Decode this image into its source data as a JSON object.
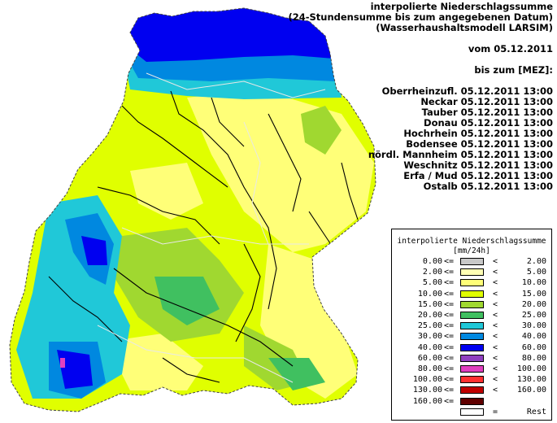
{
  "header": {
    "title_lines": [
      "interpolierte Niederschlagssumme",
      "(24-Stundensumme bis zum angegebenen Datum)",
      "(Wasserhaushaltsmodell LARSIM)"
    ],
    "date_line": "vom 05.12.2011",
    "until_line": "bis zum [MEZ]:"
  },
  "stations": [
    "Oberrheinzufl. 05.12.2011 13:00",
    "Neckar 05.12.2011 13:00",
    "Tauber 05.12.2011 13:00",
    "Donau 05.12.2011 13:00",
    "Hochrhein 05.12.2011 13:00",
    "Bodensee 05.12.2011 13:00",
    "nördl. Mannheim 05.12.2011 13:00",
    "Weschnitz 05.12.2011 13:00",
    "Erfa / Mud 05.12.2011 13:00",
    "Ostalb 05.12.2011 13:00"
  ],
  "legend": {
    "title": "interpolierte Niederschlagssumme",
    "unit": "[mm/24h]",
    "classes": [
      {
        "low": "0.00",
        "op": "<=",
        "high_op": "<",
        "high": "2.00",
        "color": "#c8c8c8"
      },
      {
        "low": "2.00",
        "op": "<=",
        "high_op": "<",
        "high": "5.00",
        "color": "#ffffb4"
      },
      {
        "low": "5.00",
        "op": "<=",
        "high_op": "<",
        "high": "10.00",
        "color": "#ffff78"
      },
      {
        "low": "10.00",
        "op": "<=",
        "high_op": "<",
        "high": "15.00",
        "color": "#e0ff00"
      },
      {
        "low": "15.00",
        "op": "<=",
        "high_op": "<",
        "high": "20.00",
        "color": "#a0d830"
      },
      {
        "low": "20.00",
        "op": "<=",
        "high_op": "<",
        "high": "25.00",
        "color": "#40c060"
      },
      {
        "low": "25.00",
        "op": "<=",
        "high_op": "<",
        "high": "30.00",
        "color": "#20c8d8"
      },
      {
        "low": "30.00",
        "op": "<=",
        "high_op": "<",
        "high": "40.00",
        "color": "#0088e0"
      },
      {
        "low": "40.00",
        "op": "<=",
        "high_op": "<",
        "high": "60.00",
        "color": "#0000f0"
      },
      {
        "low": "60.00",
        "op": "<=",
        "high_op": "<",
        "high": "80.00",
        "color": "#9040c0"
      },
      {
        "low": "80.00",
        "op": "<=",
        "high_op": "<",
        "high": "100.00",
        "color": "#e040c0"
      },
      {
        "low": "100.00",
        "op": "<=",
        "high_op": "<",
        "high": "130.00",
        "color": "#ff3030"
      },
      {
        "low": "130.00",
        "op": "<=",
        "high_op": "<",
        "high": "160.00",
        "color": "#c00000"
      },
      {
        "low": "160.00",
        "op": "<=",
        "high_op": "",
        "high": "",
        "color": "#600000"
      },
      {
        "low": "",
        "op": "",
        "high_op": "=",
        "high": "Rest",
        "color": "#ffffff"
      }
    ]
  }
}
